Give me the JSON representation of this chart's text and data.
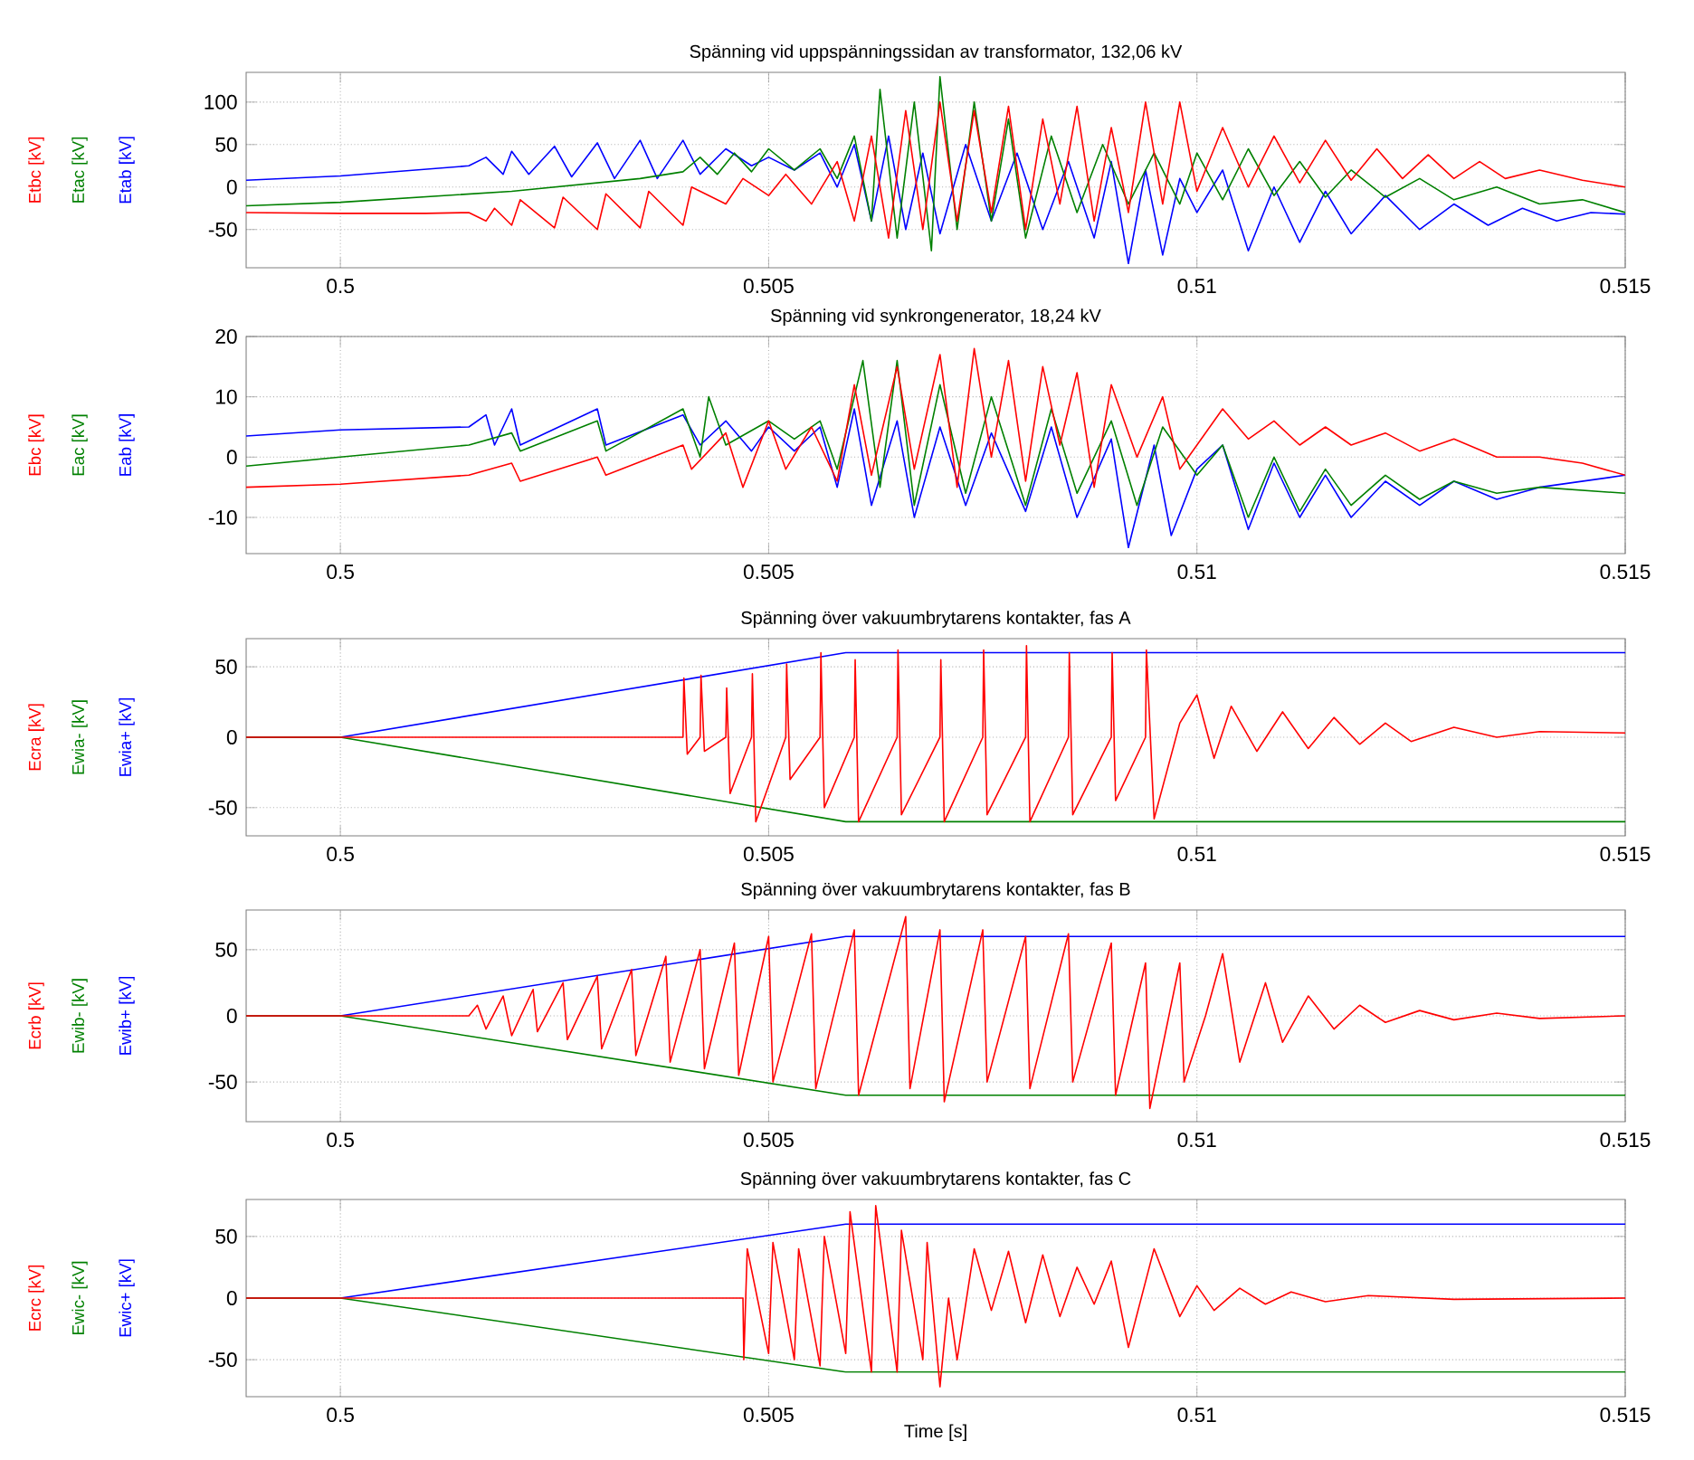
{
  "chart_data": [
    {
      "type": "line",
      "title": "Spänning vid uppspänningssidan av transformator, 132,06 kV",
      "xlim": [
        0.4989,
        0.515
      ],
      "xticks": [
        0.5,
        0.505,
        0.51,
        0.515
      ],
      "ylim": [
        -95,
        135
      ],
      "yticks": [
        -50,
        0,
        50,
        100
      ],
      "grid": true,
      "series": [
        {
          "name": "Etbc [kV]",
          "color": "#ff0000",
          "x": [
            0.4989,
            0.5,
            0.501,
            0.5015,
            0.5017,
            0.5018,
            0.502,
            0.5021,
            0.5025,
            0.5026,
            0.503,
            0.5031,
            0.5035,
            0.5036,
            0.504,
            0.5041,
            0.5045,
            0.5047,
            0.505,
            0.5052,
            0.5055,
            0.5058,
            0.506,
            0.5062,
            0.5064,
            0.5066,
            0.5068,
            0.507,
            0.5072,
            0.5074,
            0.5076,
            0.5078,
            0.508,
            0.5082,
            0.5084,
            0.5086,
            0.5088,
            0.509,
            0.5092,
            0.5094,
            0.5096,
            0.5098,
            0.51,
            0.5103,
            0.5106,
            0.5109,
            0.5112,
            0.5115,
            0.5118,
            0.5121,
            0.5124,
            0.5127,
            0.513,
            0.5133,
            0.5136,
            0.514,
            0.5145,
            0.515
          ],
          "values": [
            -30,
            -31,
            -31,
            -30,
            -40,
            -25,
            -45,
            -15,
            -48,
            -12,
            -50,
            -8,
            -48,
            -5,
            -45,
            0,
            -20,
            10,
            -10,
            15,
            -20,
            30,
            -40,
            60,
            -60,
            90,
            -50,
            100,
            -40,
            90,
            -30,
            95,
            -50,
            80,
            -20,
            95,
            -40,
            70,
            -30,
            100,
            -20,
            100,
            -5,
            70,
            0,
            60,
            5,
            55,
            8,
            45,
            10,
            38,
            10,
            30,
            10,
            20,
            8,
            0
          ]
        },
        {
          "name": "Etac [kV]",
          "color": "#008000",
          "x": [
            0.4989,
            0.5,
            0.502,
            0.5035,
            0.504,
            0.5042,
            0.5044,
            0.5046,
            0.5048,
            0.505,
            0.5053,
            0.5056,
            0.5058,
            0.506,
            0.5062,
            0.5063,
            0.5065,
            0.5067,
            0.5069,
            0.507,
            0.5072,
            0.5074,
            0.5076,
            0.5078,
            0.508,
            0.5083,
            0.5086,
            0.5089,
            0.5092,
            0.5095,
            0.5098,
            0.51,
            0.5103,
            0.5106,
            0.5109,
            0.5112,
            0.5115,
            0.5118,
            0.5122,
            0.5126,
            0.513,
            0.5135,
            0.514,
            0.5145,
            0.515
          ],
          "values": [
            -22,
            -18,
            -5,
            10,
            18,
            35,
            15,
            40,
            18,
            45,
            20,
            45,
            10,
            60,
            -40,
            115,
            -60,
            100,
            -75,
            130,
            -50,
            100,
            -40,
            80,
            -60,
            60,
            -30,
            50,
            -20,
            40,
            -20,
            40,
            -15,
            45,
            -10,
            30,
            -12,
            20,
            -12,
            10,
            -15,
            0,
            -20,
            -15,
            -30
          ]
        },
        {
          "name": "Etab [kV]",
          "color": "#0000ff",
          "x": [
            0.4989,
            0.5,
            0.5015,
            0.5017,
            0.5019,
            0.502,
            0.5022,
            0.5025,
            0.5027,
            0.503,
            0.5032,
            0.5035,
            0.5037,
            0.504,
            0.5042,
            0.5045,
            0.5048,
            0.505,
            0.5053,
            0.5056,
            0.5058,
            0.506,
            0.5062,
            0.5064,
            0.5066,
            0.5068,
            0.507,
            0.5073,
            0.5076,
            0.5079,
            0.5082,
            0.5085,
            0.5088,
            0.509,
            0.5092,
            0.5094,
            0.5096,
            0.5098,
            0.51,
            0.5103,
            0.5106,
            0.5109,
            0.5112,
            0.5115,
            0.5118,
            0.5122,
            0.5126,
            0.513,
            0.5134,
            0.5138,
            0.5142,
            0.5146,
            0.515
          ],
          "values": [
            8,
            13,
            25,
            35,
            15,
            42,
            15,
            48,
            12,
            52,
            10,
            55,
            10,
            55,
            15,
            45,
            25,
            35,
            20,
            40,
            0,
            50,
            -40,
            60,
            -50,
            40,
            -55,
            50,
            -40,
            40,
            -50,
            30,
            -60,
            30,
            -90,
            20,
            -80,
            10,
            -30,
            20,
            -75,
            0,
            -65,
            -5,
            -55,
            -10,
            -50,
            -20,
            -45,
            -25,
            -40,
            -30,
            -32
          ]
        }
      ]
    },
    {
      "type": "line",
      "title": "Spänning vid synkrongenerator, 18,24 kV",
      "xlim": [
        0.4989,
        0.515
      ],
      "xticks": [
        0.5,
        0.505,
        0.51,
        0.515
      ],
      "ylim": [
        -16,
        20
      ],
      "yticks": [
        -10,
        0,
        10,
        20
      ],
      "grid": true,
      "series": [
        {
          "name": "Ebc [kV]",
          "color": "#ff0000",
          "x": [
            0.4989,
            0.5,
            0.5015,
            0.502,
            0.5021,
            0.503,
            0.5031,
            0.504,
            0.5041,
            0.5045,
            0.5047,
            0.505,
            0.5052,
            0.5055,
            0.5058,
            0.506,
            0.5062,
            0.5065,
            0.5067,
            0.507,
            0.5072,
            0.5074,
            0.5076,
            0.5078,
            0.508,
            0.5082,
            0.5084,
            0.5086,
            0.5088,
            0.509,
            0.5093,
            0.5096,
            0.5098,
            0.51,
            0.5103,
            0.5106,
            0.5109,
            0.5112,
            0.5115,
            0.5118,
            0.5122,
            0.5126,
            0.513,
            0.5135,
            0.514,
            0.5145,
            0.515
          ],
          "values": [
            -5,
            -4.5,
            -3,
            -1,
            -4,
            0,
            -3,
            2,
            -2,
            4,
            -5,
            6,
            -2,
            5,
            -4,
            12,
            -3,
            15,
            -2,
            17,
            -5,
            18,
            0,
            16,
            -4,
            15,
            2,
            14,
            -5,
            12,
            0,
            10,
            -2,
            2,
            8,
            3,
            6,
            2,
            5,
            2,
            4,
            1,
            3,
            0,
            0,
            -1,
            -3
          ]
        },
        {
          "name": "Eac [kV]",
          "color": "#008000",
          "x": [
            0.4989,
            0.5,
            0.5015,
            0.502,
            0.5021,
            0.503,
            0.5031,
            0.504,
            0.5042,
            0.5043,
            0.5045,
            0.505,
            0.5053,
            0.5056,
            0.5058,
            0.5061,
            0.5063,
            0.5065,
            0.5067,
            0.507,
            0.5073,
            0.5076,
            0.508,
            0.5083,
            0.5086,
            0.509,
            0.5093,
            0.5096,
            0.51,
            0.5103,
            0.5106,
            0.5109,
            0.5112,
            0.5115,
            0.5118,
            0.5122,
            0.5126,
            0.513,
            0.5135,
            0.514,
            0.515
          ],
          "values": [
            -1.5,
            0,
            2,
            4,
            1,
            6,
            1,
            8,
            0,
            10,
            2,
            6,
            3,
            6,
            -2,
            16,
            -5,
            16,
            -8,
            12,
            -6,
            10,
            -8,
            8,
            -6,
            6,
            -8,
            5,
            -3,
            2,
            -10,
            0,
            -9,
            -2,
            -8,
            -3,
            -7,
            -4,
            -6,
            -5,
            -6
          ]
        },
        {
          "name": "Eab [kV]",
          "color": "#0000ff",
          "x": [
            0.4989,
            0.5,
            0.5015,
            0.5017,
            0.5018,
            0.502,
            0.5021,
            0.503,
            0.5031,
            0.504,
            0.5042,
            0.5045,
            0.5048,
            0.505,
            0.5053,
            0.5056,
            0.5058,
            0.506,
            0.5062,
            0.5065,
            0.5067,
            0.507,
            0.5073,
            0.5076,
            0.508,
            0.5083,
            0.5086,
            0.509,
            0.5092,
            0.5095,
            0.5097,
            0.51,
            0.5103,
            0.5106,
            0.5109,
            0.5112,
            0.5115,
            0.5118,
            0.5122,
            0.5126,
            0.513,
            0.5135,
            0.514,
            0.515
          ],
          "values": [
            3.5,
            4.5,
            5,
            7,
            2,
            8,
            2,
            8,
            2,
            7,
            2,
            6,
            1,
            5,
            1,
            5,
            -5,
            8,
            -8,
            6,
            -10,
            5,
            -8,
            4,
            -9,
            5,
            -10,
            3,
            -15,
            2,
            -13,
            -2,
            2,
            -12,
            -1,
            -10,
            -3,
            -10,
            -4,
            -8,
            -4,
            -7,
            -5,
            -3
          ]
        }
      ]
    },
    {
      "type": "line",
      "title": "Spänning över vakuumbrytarens kontakter, fas A",
      "xlim": [
        0.4989,
        0.515
      ],
      "xticks": [
        0.5,
        0.505,
        0.51,
        0.515
      ],
      "ylim": [
        -70,
        70
      ],
      "yticks": [
        -50,
        0,
        50
      ],
      "grid": true,
      "series": [
        {
          "name": "Ecra [kV]",
          "color": "#ff0000",
          "x": [
            0.4989,
            0.504,
            0.50401,
            0.50405,
            0.5042,
            0.50421,
            0.50425,
            0.5045,
            0.50451,
            0.50455,
            0.5048,
            0.50481,
            0.50485,
            0.5052,
            0.50521,
            0.50525,
            0.5056,
            0.50561,
            0.50565,
            0.506,
            0.50601,
            0.50605,
            0.5065,
            0.50651,
            0.50655,
            0.507,
            0.50701,
            0.50705,
            0.5075,
            0.50751,
            0.50755,
            0.508,
            0.50801,
            0.50805,
            0.5085,
            0.50851,
            0.50855,
            0.509,
            0.50901,
            0.50905,
            0.5094,
            0.50941,
            0.5095,
            0.5098,
            0.51,
            0.5102,
            0.5104,
            0.5107,
            0.511,
            0.5113,
            0.5116,
            0.5119,
            0.5122,
            0.5125,
            0.513,
            0.5135,
            0.514,
            0.515
          ],
          "values": [
            0,
            0,
            42,
            -12,
            0,
            44,
            -10,
            0,
            35,
            -40,
            0,
            45,
            -60,
            0,
            52,
            -30,
            0,
            60,
            -50,
            0,
            55,
            -60,
            0,
            62,
            -55,
            0,
            55,
            -60,
            0,
            62,
            -55,
            0,
            65,
            -60,
            0,
            60,
            -55,
            0,
            60,
            -45,
            0,
            62,
            -58,
            10,
            30,
            -15,
            22,
            -10,
            18,
            -8,
            14,
            -5,
            10,
            -3,
            7,
            0,
            4,
            3
          ]
        },
        {
          "name": "Ewia- [kV]",
          "color": "#008000",
          "x": [
            0.4989,
            0.5,
            0.5059,
            0.515
          ],
          "values": [
            0,
            0,
            -60,
            -60
          ]
        },
        {
          "name": "Ewia+ [kV]",
          "color": "#0000ff",
          "x": [
            0.4989,
            0.5,
            0.5059,
            0.515
          ],
          "values": [
            0,
            0,
            60,
            60
          ]
        }
      ]
    },
    {
      "type": "line",
      "title": "Spänning över vakuumbrytarens kontakter, fas B",
      "xlim": [
        0.4989,
        0.515
      ],
      "xticks": [
        0.5,
        0.505,
        0.51,
        0.515
      ],
      "ylim": [
        -80,
        80
      ],
      "yticks": [
        -50,
        0,
        50
      ],
      "grid": true,
      "series": [
        {
          "name": "Ecrb [kV]",
          "color": "#ff0000",
          "x": [
            0.4989,
            0.5015,
            0.5016,
            0.5017,
            0.5019,
            0.502,
            0.50225,
            0.5023,
            0.5026,
            0.50265,
            0.503,
            0.50305,
            0.5034,
            0.50345,
            0.5038,
            0.50385,
            0.5042,
            0.50425,
            0.5046,
            0.50465,
            0.505,
            0.50505,
            0.5055,
            0.50555,
            0.506,
            0.50605,
            0.5066,
            0.50665,
            0.507,
            0.50705,
            0.5075,
            0.50755,
            0.508,
            0.50805,
            0.5085,
            0.50855,
            0.509,
            0.50905,
            0.5094,
            0.50945,
            0.5098,
            0.50985,
            0.5101,
            0.5103,
            0.5105,
            0.5108,
            0.511,
            0.5113,
            0.5116,
            0.5119,
            0.5122,
            0.5126,
            0.513,
            0.5135,
            0.514,
            0.515
          ],
          "values": [
            0,
            0,
            8,
            -10,
            15,
            -15,
            20,
            -12,
            25,
            -18,
            30,
            -25,
            35,
            -30,
            45,
            -35,
            50,
            -40,
            55,
            -45,
            60,
            -50,
            62,
            -55,
            65,
            -60,
            75,
            -55,
            65,
            -65,
            65,
            -50,
            60,
            -55,
            62,
            -50,
            55,
            -60,
            40,
            -70,
            40,
            -50,
            0,
            47,
            -35,
            25,
            -20,
            15,
            -10,
            8,
            -5,
            4,
            -3,
            2,
            -2,
            0
          ]
        },
        {
          "name": "Ewib- [kV]",
          "color": "#008000",
          "x": [
            0.4989,
            0.5,
            0.5059,
            0.515
          ],
          "values": [
            0,
            0,
            -60,
            -60
          ]
        },
        {
          "name": "Ewib+ [kV]",
          "color": "#0000ff",
          "x": [
            0.4989,
            0.5,
            0.5059,
            0.515
          ],
          "values": [
            0,
            0,
            60,
            60
          ]
        }
      ]
    },
    {
      "type": "line",
      "title": "Spänning över vakuumbrytarens kontakter, fas C",
      "xlabel": "Time [s]",
      "xlim": [
        0.4989,
        0.515
      ],
      "xticks": [
        0.5,
        0.505,
        0.51,
        0.515
      ],
      "ylim": [
        -80,
        80
      ],
      "yticks": [
        -50,
        0,
        50
      ],
      "grid": true,
      "series": [
        {
          "name": "Ecrc [kV]",
          "color": "#ff0000",
          "x": [
            0.4989,
            0.5047,
            0.50471,
            0.50475,
            0.505,
            0.50505,
            0.5053,
            0.50535,
            0.5056,
            0.50565,
            0.5059,
            0.50595,
            0.5062,
            0.50625,
            0.5065,
            0.50655,
            0.5068,
            0.50685,
            0.507,
            0.5071,
            0.5072,
            0.5074,
            0.5076,
            0.5078,
            0.508,
            0.5082,
            0.5084,
            0.5086,
            0.5088,
            0.509,
            0.5092,
            0.5095,
            0.5098,
            0.51,
            0.5102,
            0.5105,
            0.5108,
            0.5111,
            0.5115,
            0.512,
            0.513,
            0.515
          ],
          "values": [
            0,
            0,
            -50,
            40,
            -45,
            45,
            -50,
            40,
            -55,
            50,
            -45,
            70,
            -60,
            75,
            -60,
            55,
            -50,
            45,
            -72,
            0,
            -50,
            40,
            -10,
            38,
            -20,
            35,
            -15,
            25,
            -5,
            30,
            -40,
            40,
            -15,
            10,
            -10,
            8,
            -5,
            5,
            -3,
            2,
            -1,
            0
          ]
        },
        {
          "name": "Ewic- [kV]",
          "color": "#008000",
          "x": [
            0.4989,
            0.5,
            0.5059,
            0.515
          ],
          "values": [
            0,
            0,
            -60,
            -60
          ]
        },
        {
          "name": "Ewic+ [kV]",
          "color": "#0000ff",
          "x": [
            0.4989,
            0.5,
            0.5059,
            0.515
          ],
          "values": [
            0,
            0,
            60,
            60
          ]
        }
      ]
    }
  ]
}
